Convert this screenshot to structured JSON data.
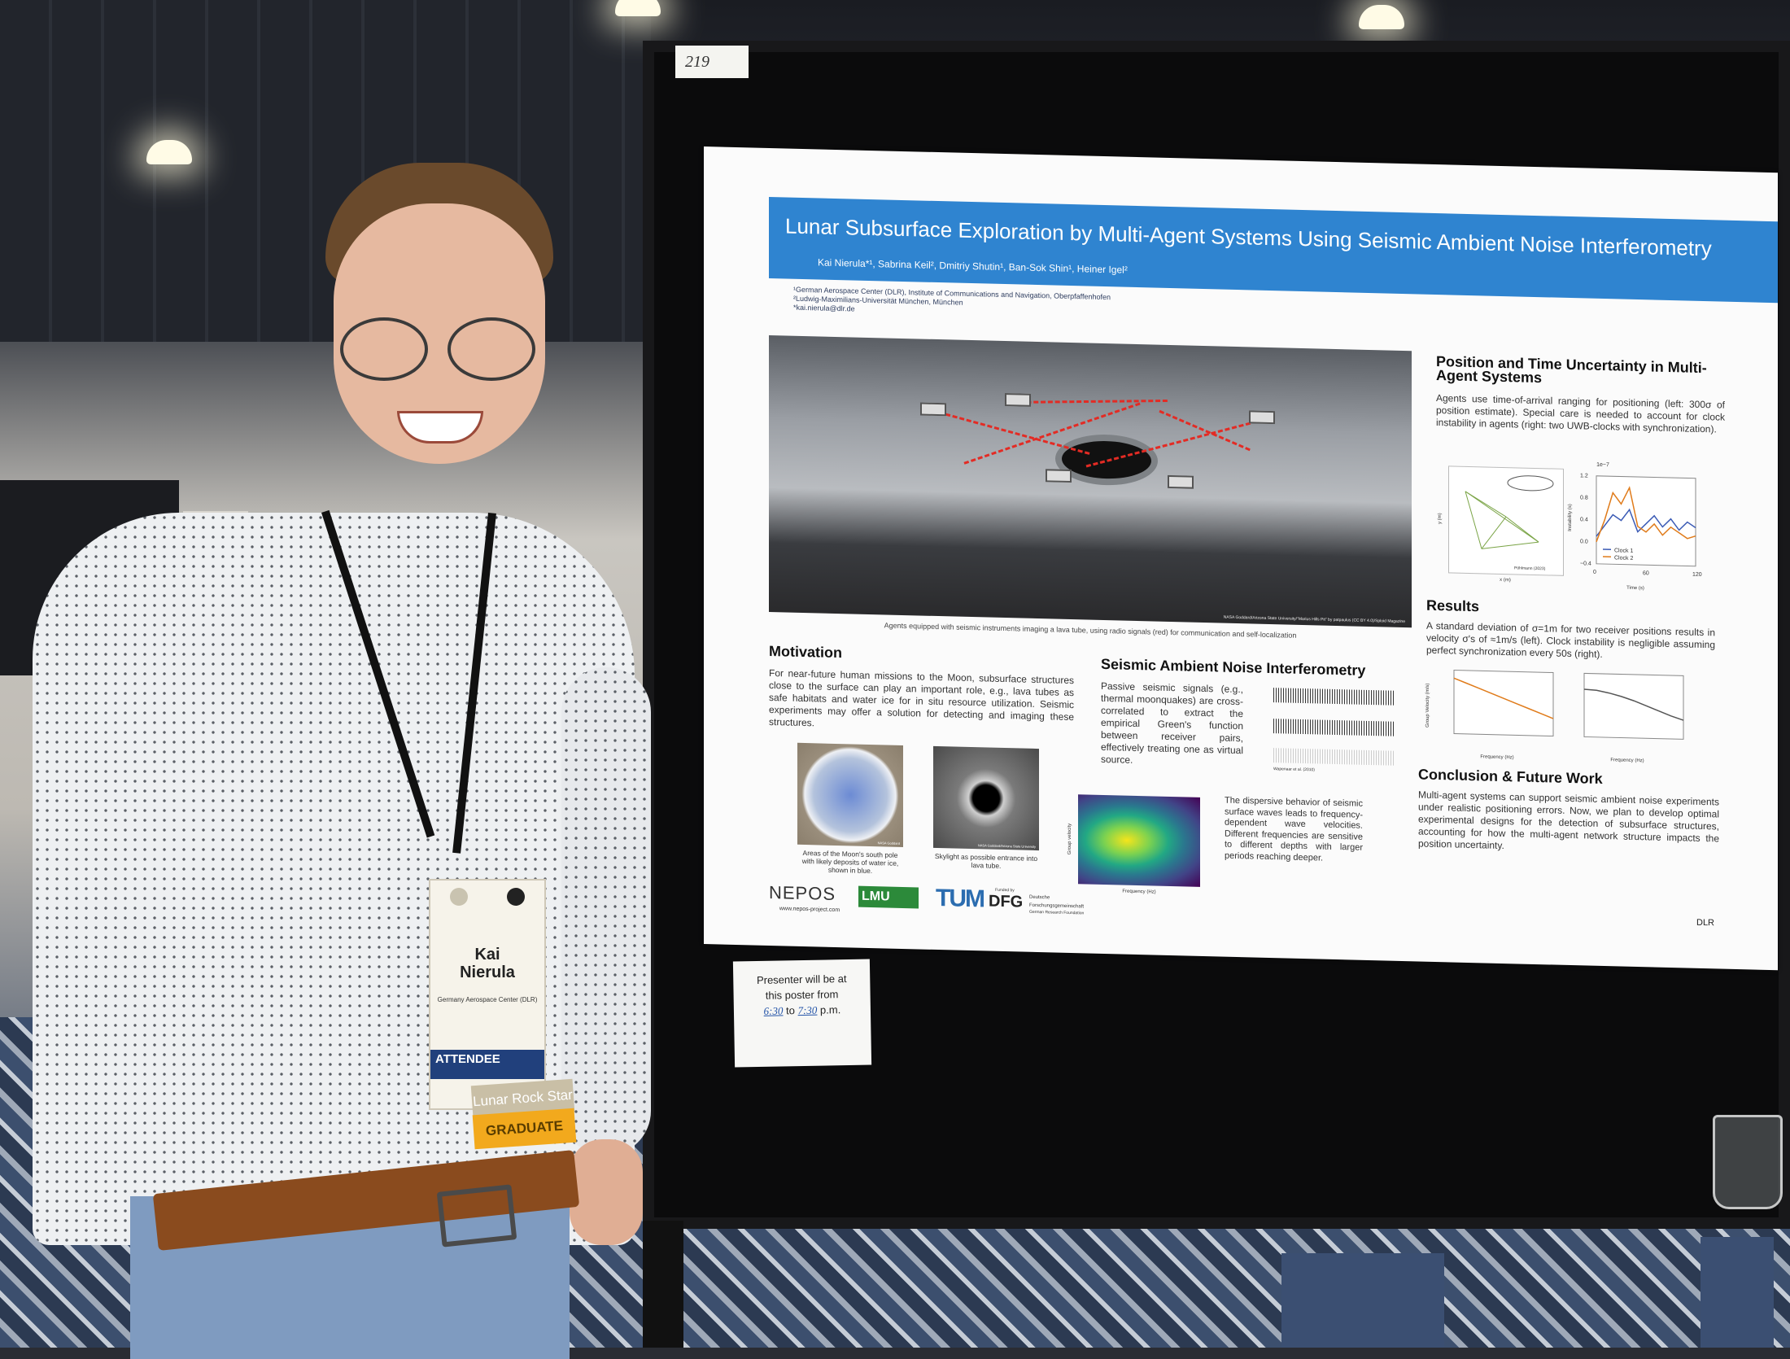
{
  "board": {
    "number_tag": "219"
  },
  "poster": {
    "title": "Lunar Subsurface Exploration by Multi-Agent Systems Using Seismic Ambient Noise Interferometry",
    "authors": "Kai Nierula*¹, Sabrina Keil², Dmitriy Shutin¹, Ban-Sok Shin¹, Heiner Igel²",
    "affiliations": [
      "¹German Aerospace Center (DLR), Institute of Communications and Navigation, Oberpfaffenhofen",
      "²Ludwig-Maximilians-Universität München, München",
      "*kai.nierula@dlr.de"
    ],
    "hero_credit": "NASA Goddard/Arizona State University/\"Marius Hills Pit\" by patpaulus (CC BY 4.0)/Sploid Magazine",
    "hero_caption": "Agents equipped with seismic instruments imaging a lava tube, using radio signals (red) for communication and self-localization",
    "motivation": {
      "title": "Motivation",
      "text": "For near-future human missions to the Moon, subsurface structures close to the surface can play an important role, e.g., lava tubes as safe habitats and water ice for in situ resource utilization. Seismic experiments may offer a solution for detecting and imaging these structures.",
      "img1_caption": "Areas of the Moon's south pole with likely deposits of water ice, shown in blue.",
      "img1_credit": "NASA Goddard",
      "img2_caption": "Skylight as possible entrance into lava tube.",
      "img2_credit": "NASA Goddard/Arizona State University"
    },
    "sani": {
      "title": "Seismic Ambient Noise Interferometry",
      "text": "Passive seismic signals (e.g., thermal moonquakes) are cross-correlated to extract the empirical Green's function between receiver pairs, effectively treating one as virtual source.",
      "waveform_credit": "Wapenaar et al. (2010)",
      "dispersion_text": "The dispersive behavior of seismic surface waves leads to frequency-dependent wave velocities. Different frequencies are sensitive to different depths with larger periods reaching deeper.",
      "heatmap_xlabel": "Frequency (Hz)",
      "heatmap_ylabel": "Group velocity"
    },
    "position": {
      "title": "Position and Time Uncertainty in Multi-Agent Systems",
      "text": "Agents use time-of-arrival ranging for positioning (left: 300σ of position estimate). Special care is needed to account for clock instability in agents (right: two UWB-clocks with synchronization).",
      "left_xlabel": "x (m)",
      "left_ylabel": "y (m)",
      "left_credit": "Pöhlmann (2023)",
      "right_xlabel": "Time (s)",
      "right_ylabel": "Instability (s)",
      "right_exponent": "1e−7",
      "legend": [
        "Clock 1",
        "Clock 2"
      ],
      "right_yticks": [
        "1.2",
        "0.8",
        "0.4",
        "0.0",
        "−0.4"
      ],
      "right_xticks": [
        "0",
        "60",
        "120"
      ]
    },
    "results": {
      "title": "Results",
      "text": "A standard deviation of σ=1m for two receiver positions results in velocity σ's of ≈1m/s (left). Clock instability is negligible assuming perfect synchronization every 50s (right).",
      "xlabel": "Frequency (Hz)",
      "ylabel": "Group Velocity (m/s)"
    },
    "conclusion": {
      "title": "Conclusion & Future Work",
      "text": "Multi-agent systems can support seismic ambient noise experiments under realistic positioning errors. Now, we plan to develop optimal experimental designs for the detection of subsurface structures, accounting for how the multi-agent network structure impacts the position uncertainty."
    },
    "logos": {
      "nepos": "NEPOS",
      "nepos_url": "www.nepos-project.com",
      "lmu": "LMU",
      "tum": "TUM",
      "funded_by": "Funded by",
      "dfg": "DFG",
      "dfg_name": "Deutsche Forschungsgemeinschaft",
      "dfg_en": "German Research Foundation",
      "dlr": "DLR"
    }
  },
  "note": {
    "line1": "Presenter will be at",
    "line2": "this poster from",
    "from_time": "6:30",
    "to_word": "to",
    "to_time": "7:30",
    "suffix": "p.m."
  },
  "badge": {
    "name_first": "Kai",
    "name_last": "Nierula",
    "organization": "Germany Aerospace Center (DLR)",
    "attendee": "ATTENDEE",
    "ribbon1": "Lunar Rock Star",
    "ribbon2": "GRADUATE"
  },
  "chart_data": [
    {
      "type": "line",
      "title": "",
      "xlabel": "Time (s)",
      "ylabel": "Instability (s)",
      "ylim": [
        -0.4,
        1.2
      ],
      "xlim": [
        0,
        120
      ],
      "series": [
        {
          "name": "Clock 1",
          "color": "#3b5bb5",
          "x": [
            0,
            10,
            20,
            30,
            40,
            50,
            60,
            70,
            80,
            90,
            100,
            110,
            120
          ],
          "values": [
            0.1,
            0.3,
            0.5,
            0.4,
            0.6,
            0.2,
            0.35,
            0.5,
            0.3,
            0.45,
            0.25,
            0.4,
            0.3
          ]
        },
        {
          "name": "Clock 2",
          "color": "#e07b1a",
          "x": [
            0,
            10,
            20,
            30,
            40,
            50,
            60,
            70,
            80,
            90,
            100,
            110,
            120
          ],
          "values": [
            0.0,
            0.4,
            0.9,
            0.7,
            1.0,
            0.3,
            0.2,
            0.35,
            0.15,
            0.3,
            0.2,
            0.1,
            0.15
          ]
        }
      ]
    },
    {
      "type": "line",
      "title": "",
      "xlabel": "Frequency (Hz)",
      "ylabel": "Group Velocity (m/s)",
      "ylim": [
        34,
        42
      ],
      "xlim": [
        0,
        8
      ],
      "series": [
        {
          "name": "",
          "color": "#e07b1a",
          "x": [
            0,
            1,
            2,
            3,
            4,
            5,
            6,
            7,
            8
          ],
          "values": [
            41,
            40.4,
            39.8,
            39.2,
            38.6,
            38,
            37.4,
            36.8,
            36.2
          ]
        }
      ]
    },
    {
      "type": "line",
      "title": "",
      "xlabel": "Frequency (Hz)",
      "ylabel": "Group Velocity (m/s)",
      "ylim": [
        34,
        42
      ],
      "xlim": [
        0,
        8
      ],
      "series": [
        {
          "name": "",
          "color": "#555555",
          "x": [
            0,
            1,
            2,
            3,
            4,
            5,
            6,
            7,
            8
          ],
          "values": [
            40,
            39.9,
            39.6,
            39.2,
            38.7,
            38.1,
            37.5,
            36.9,
            36.4
          ]
        }
      ]
    }
  ]
}
